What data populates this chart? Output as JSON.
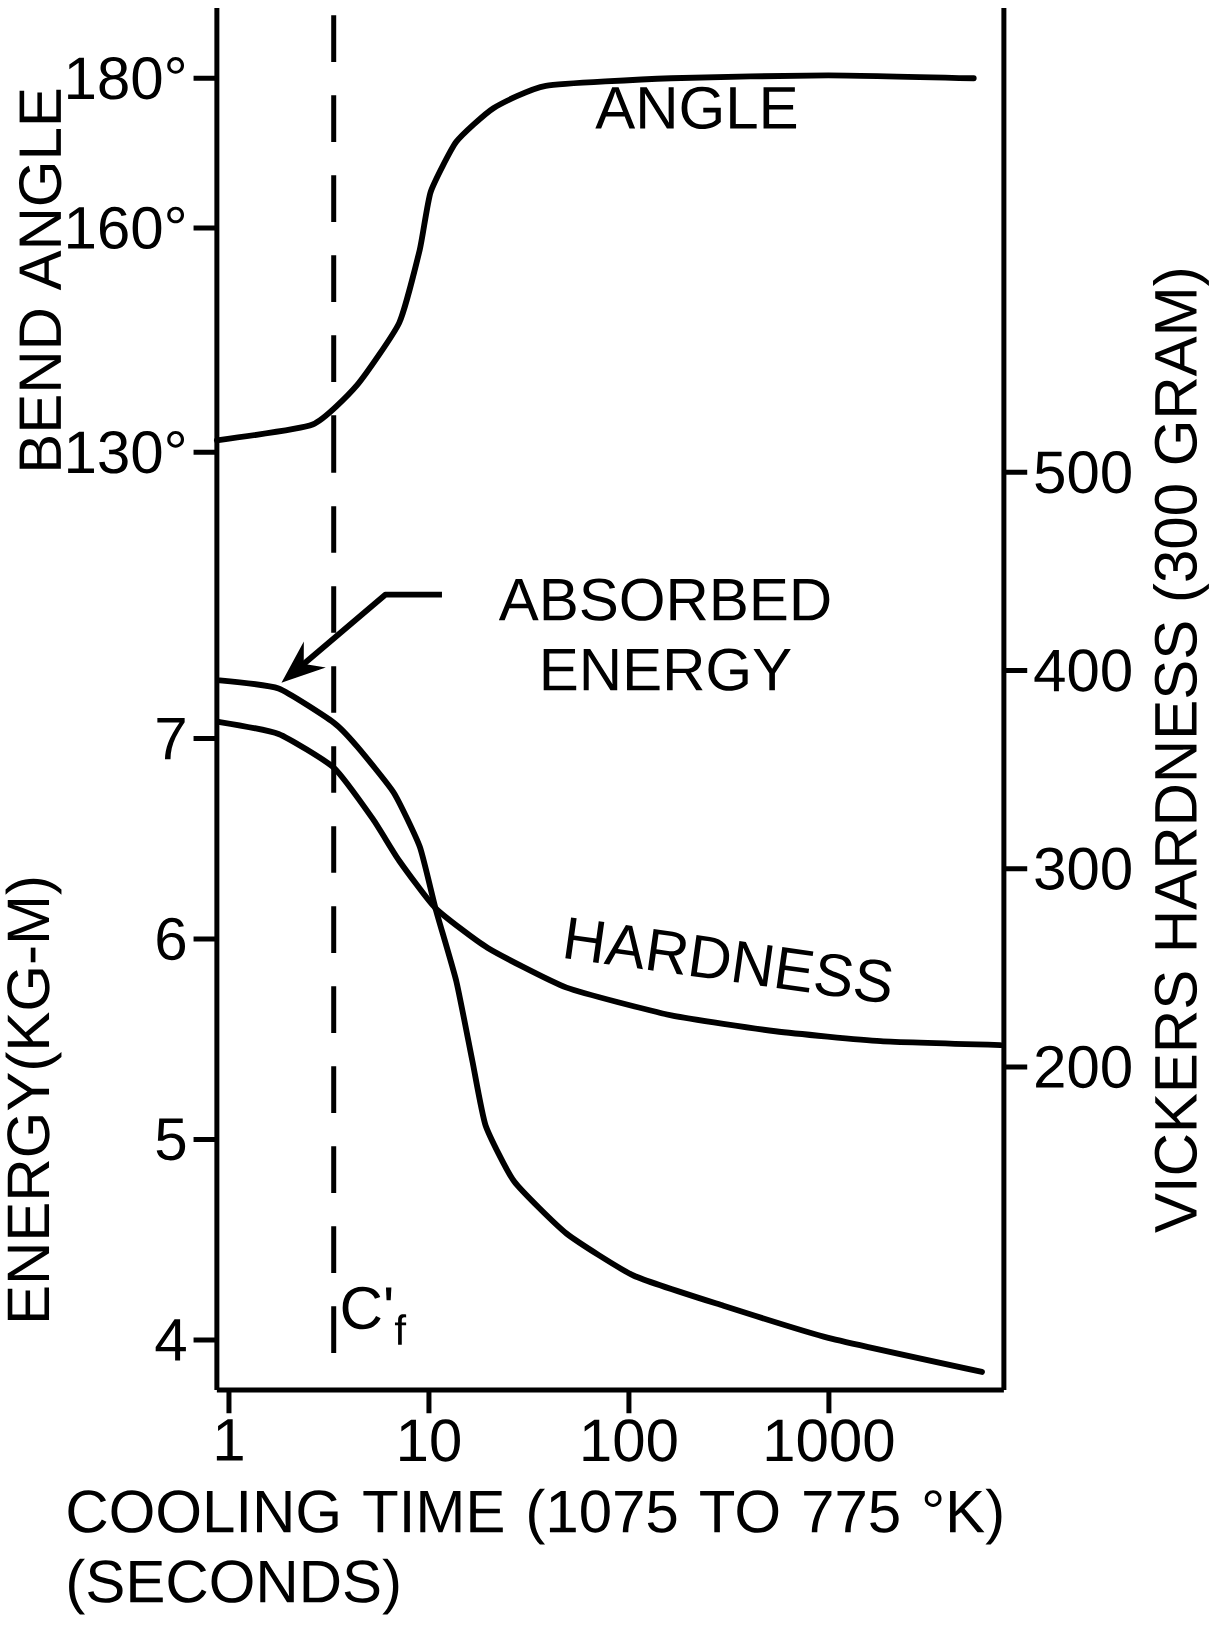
{
  "chart_data": [
    {
      "type": "line",
      "ylabel": "BEND ANGLE",
      "log": "x",
      "marker": "none",
      "line_style": "solid",
      "tick_labels": "y",
      "xlim": [
        0.87,
        7500
      ],
      "ylim": [
        128.7,
        189.4
      ],
      "yticks": [
        {
          "value": 130,
          "label": "130°"
        },
        {
          "value": 160,
          "label": "160°"
        },
        {
          "value": 180,
          "label": "180°"
        }
      ],
      "ref_lines": [
        {
          "axis": "x",
          "value": 3.34,
          "line_style": "dashed",
          "color": "#000000"
        }
      ],
      "series": [
        {
          "name": "ANGLE",
          "color": "#000000",
          "x": [
            0.87,
            2.62,
            4.38,
            7.1,
            9,
            10.2,
            13.7,
            21,
            38.4,
            163,
            993,
            5300
          ],
          "values": [
            131.6,
            133.7,
            139,
            147.3,
            157.1,
            164.8,
            171.5,
            176,
            179,
            180,
            180.4,
            180
          ]
        }
      ]
    },
    {
      "type": "line",
      "xlabel": "COOLING TIME (1075 TO 775 °K) (SECONDS)",
      "ylabel": "ENERGY(KG-M)",
      "y2label": "VICKERS HARDNESS (300 GRAM)",
      "log": "x",
      "marker": "none",
      "line_style": "solid",
      "xlim": [
        0.87,
        7500
      ],
      "xticks": [
        1,
        10,
        100,
        1000
      ],
      "ylim": [
        3.75,
        8.38
      ],
      "yticks": [
        4,
        5,
        6,
        7
      ],
      "y2lim": [
        37,
        505.2
      ],
      "y2ticks": [
        200,
        300,
        400,
        500
      ],
      "ref_lines": [
        {
          "axis": "x",
          "value": 3.34,
          "label": "C'$_{f}$",
          "line_style": "dashed",
          "color": "#000000"
        }
      ],
      "series": [
        {
          "name": "ABSORBED ENERGY",
          "color": "#000000",
          "x": [
            0.9,
            1.77,
            3.34,
            4.38,
            6.67,
            9.0,
            10.8,
            13.7,
            16.5,
            19.2,
            26.7,
            48.8,
            106,
            297,
            993,
            5830
          ],
          "values": [
            7.29,
            7.25,
            7.08,
            6.96,
            6.73,
            6.46,
            6.15,
            5.79,
            5.39,
            5.07,
            4.79,
            4.53,
            4.32,
            4.17,
            4.01,
            3.84
          ]
        },
        {
          "name": "HARDNESS",
          "axis": "y2",
          "color": "#000000",
          "x": [
            0.9,
            1.77,
            3.34,
            5.25,
            7.1,
            10.8,
            19.7,
            48.8,
            163,
            540,
            1813,
            7200
          ],
          "values": [
            374,
            368,
            351,
            325,
            304,
            280,
            260,
            240,
            226,
            218,
            213,
            211
          ]
        }
      ]
    }
  ]
}
